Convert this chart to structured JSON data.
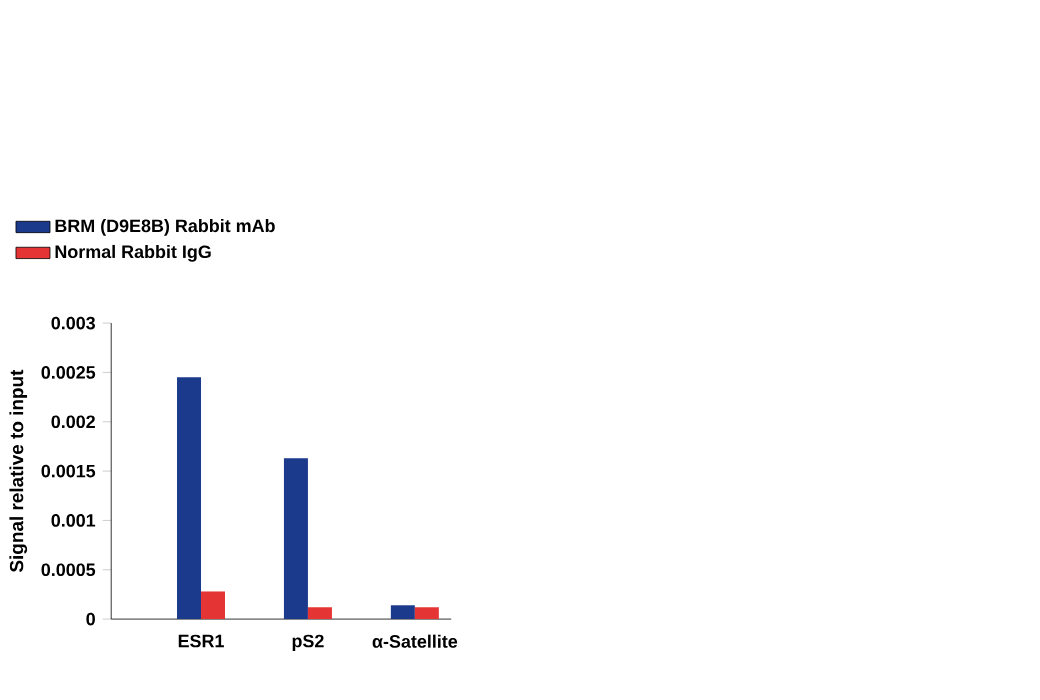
{
  "chart_data": {
    "type": "bar",
    "ylabel": "Signal relative to input",
    "categories": [
      "ESR1",
      "pS2",
      "α-Satellite"
    ],
    "series": [
      {
        "name": "BRM (D9E8B) Rabbit mAb",
        "color": "#1c3a8c",
        "values": [
          0.00245,
          0.00163,
          0.00014
        ]
      },
      {
        "name": "Normal Rabbit IgG",
        "color": "#e53434",
        "values": [
          0.00028,
          0.00012,
          0.00012
        ]
      }
    ],
    "ylim": [
      0,
      0.003
    ],
    "yticks": [
      0,
      0.0005,
      0.001,
      0.0015,
      0.002,
      0.0025,
      0.003
    ],
    "legend": "top"
  }
}
